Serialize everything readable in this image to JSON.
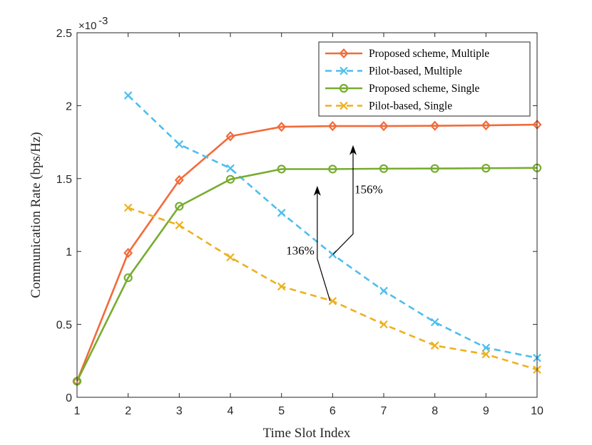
{
  "chart_data": {
    "type": "line",
    "title": "",
    "xlabel": "Time Slot Index",
    "ylabel": "Communication Rate (bps/Hz)",
    "y_multiplier_label": "×10",
    "y_multiplier_exponent": "-3",
    "xlim": [
      1,
      10
    ],
    "ylim": [
      0,
      2.5
    ],
    "x_ticks": [
      "1",
      "2",
      "3",
      "4",
      "5",
      "6",
      "7",
      "8",
      "9",
      "10"
    ],
    "y_ticks": [
      "0",
      "0.5",
      "1",
      "1.5",
      "2",
      "2.5"
    ],
    "y_tick_values": [
      0,
      0.5,
      1,
      1.5,
      2,
      2.5
    ],
    "grid": false,
    "legend_position": "top-right",
    "series": [
      {
        "name": "Proposed scheme, Multiple",
        "color": "#f26b3a",
        "line": "solid",
        "marker": "diamond",
        "x": [
          1,
          2,
          3,
          4,
          5,
          6,
          7,
          8,
          9,
          10
        ],
        "values": [
          0.11,
          0.99,
          1.49,
          1.79,
          1.855,
          1.86,
          1.86,
          1.862,
          1.865,
          1.87
        ]
      },
      {
        "name": "Pilot-based, Multiple",
        "color": "#4dbeee",
        "line": "dashed",
        "marker": "x",
        "x": [
          2,
          3,
          4,
          5,
          6,
          7,
          8,
          9,
          10
        ],
        "values": [
          2.07,
          1.735,
          1.57,
          1.265,
          0.98,
          0.73,
          0.515,
          0.34,
          0.27
        ]
      },
      {
        "name": "Proposed scheme, Single",
        "color": "#77ac30",
        "line": "solid",
        "marker": "circle",
        "x": [
          1,
          2,
          3,
          4,
          5,
          6,
          7,
          8,
          9,
          10
        ],
        "values": [
          0.11,
          0.82,
          1.31,
          1.495,
          1.565,
          1.565,
          1.568,
          1.569,
          1.571,
          1.573
        ]
      },
      {
        "name": "Pilot-based, Single",
        "color": "#edb120",
        "line": "dashed",
        "marker": "x",
        "x": [
          2,
          3,
          4,
          5,
          6,
          7,
          8,
          9,
          10
        ],
        "values": [
          1.3,
          1.18,
          0.96,
          0.76,
          0.66,
          0.5,
          0.355,
          0.295,
          0.19
        ]
      }
    ],
    "annotations": [
      {
        "text": "156%",
        "x": 6.4,
        "from_y": 0.98,
        "to_y": 1.73
      },
      {
        "text": "136%",
        "x": 5.7,
        "from_y": 0.66,
        "to_y": 1.45
      }
    ]
  }
}
